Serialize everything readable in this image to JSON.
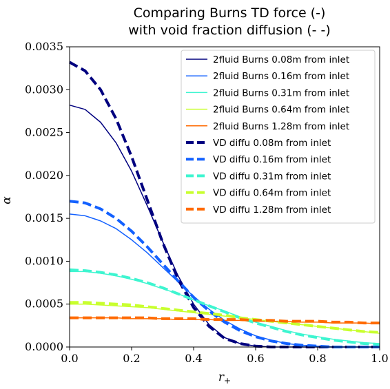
{
  "chart_data": {
    "type": "line",
    "title": [
      "Comparing Burns TD force (-)",
      "with void fraction diffusion (- -)"
    ],
    "xlabel": "r+",
    "ylabel": "α",
    "xlim": [
      0.0,
      1.0
    ],
    "ylim": [
      0.0,
      0.0035
    ],
    "x_ticks": [
      "0.0",
      "0.2",
      "0.4",
      "0.6",
      "0.8",
      "1.0"
    ],
    "y_ticks": [
      "0.0000",
      "0.0005",
      "0.0010",
      "0.0015",
      "0.0020",
      "0.0025",
      "0.0030",
      "0.0035"
    ],
    "grid": false,
    "legend_position": "top-right",
    "x": [
      0.0,
      0.05,
      0.1,
      0.15,
      0.2,
      0.25,
      0.3,
      0.35,
      0.4,
      0.45,
      0.5,
      0.55,
      0.6,
      0.65,
      0.7,
      0.75,
      0.8,
      0.85,
      0.9,
      0.95,
      1.0
    ],
    "series": [
      {
        "name": "2fluid Burns 0.08m from inlet",
        "color": "#00007f",
        "style": "solid",
        "values": [
          0.00282,
          0.00277,
          0.00262,
          0.00238,
          0.00205,
          0.00165,
          0.00123,
          0.00083,
          0.0005,
          0.00026,
          0.00011,
          4e-05,
          1e-05,
          0.0,
          0.0,
          0.0,
          0.0,
          0.0,
          0.0,
          0.0,
          0.0
        ]
      },
      {
        "name": "2fluid Burns 0.16m from inlet",
        "color": "#1361ff",
        "style": "solid",
        "values": [
          0.00155,
          0.00153,
          0.00147,
          0.00138,
          0.00125,
          0.0011,
          0.00093,
          0.00076,
          0.00059,
          0.00044,
          0.00031,
          0.00021,
          0.00013,
          8e-05,
          4e-05,
          2e-05,
          1e-05,
          0.0,
          0.0,
          0.0,
          0.0
        ]
      },
      {
        "name": "2fluid Burns 0.31m from inlet",
        "color": "#3ef5d0",
        "style": "solid",
        "values": [
          0.00088,
          0.00088,
          0.00086,
          0.00083,
          0.00079,
          0.00074,
          0.00068,
          0.00062,
          0.00055,
          0.00048,
          0.00042,
          0.00035,
          0.00029,
          0.00024,
          0.00019,
          0.00015,
          0.00012,
          9e-05,
          7e-05,
          5e-05,
          4e-05
        ]
      },
      {
        "name": "2fluid Burns 0.64m from inlet",
        "color": "#c8ff2e",
        "style": "solid",
        "values": [
          0.0005,
          0.0005,
          0.00049,
          0.00048,
          0.00047,
          0.00046,
          0.00044,
          0.00042,
          0.0004,
          0.00038,
          0.00036,
          0.00034,
          0.00032,
          0.0003,
          0.00028,
          0.00026,
          0.00024,
          0.00022,
          0.0002,
          0.00018,
          0.00016
        ]
      },
      {
        "name": "2fluid Burns 1.28m from inlet",
        "color": "#ff6a00",
        "style": "solid",
        "values": [
          0.00034,
          0.00034,
          0.00034,
          0.00034,
          0.00033,
          0.00033,
          0.00033,
          0.00032,
          0.00032,
          0.00032,
          0.00031,
          0.00031,
          0.0003,
          0.0003,
          0.0003,
          0.00029,
          0.00029,
          0.00028,
          0.00028,
          0.00028,
          0.00027
        ]
      },
      {
        "name": "VD diffu 0.08m from inlet",
        "color": "#00007f",
        "style": "dashed",
        "values": [
          0.00332,
          0.00322,
          0.003,
          0.00266,
          0.00222,
          0.00172,
          0.00122,
          0.00079,
          0.00046,
          0.00024,
          0.0001,
          4e-05,
          1e-05,
          0.0,
          0.0,
          0.0,
          0.0,
          0.0,
          0.0,
          0.0,
          0.0
        ]
      },
      {
        "name": "VD diffu 0.16m from inlet",
        "color": "#1361ff",
        "style": "dashed",
        "values": [
          0.0017,
          0.00168,
          0.00161,
          0.0015,
          0.00135,
          0.00117,
          0.00097,
          0.00077,
          0.00058,
          0.00042,
          0.00029,
          0.00019,
          0.00012,
          7e-05,
          4e-05,
          2e-05,
          1e-05,
          0.0,
          0.0,
          0.0,
          0.0
        ]
      },
      {
        "name": "VD diffu 0.31m from inlet",
        "color": "#3ef5d0",
        "style": "dashed",
        "values": [
          0.0009,
          0.00089,
          0.00087,
          0.00084,
          0.0008,
          0.00075,
          0.00069,
          0.00062,
          0.00055,
          0.00048,
          0.00041,
          0.00034,
          0.00028,
          0.00023,
          0.00018,
          0.00014,
          0.00011,
          8e-05,
          6e-05,
          4e-05,
          3e-05
        ]
      },
      {
        "name": "VD diffu 0.64m from inlet",
        "color": "#c8ff2e",
        "style": "dashed",
        "values": [
          0.00052,
          0.00052,
          0.00051,
          0.0005,
          0.00049,
          0.00047,
          0.00045,
          0.00043,
          0.00041,
          0.00039,
          0.00037,
          0.00034,
          0.00032,
          0.0003,
          0.00028,
          0.00026,
          0.00024,
          0.00022,
          0.0002,
          0.00018,
          0.00017
        ]
      },
      {
        "name": "VD diffu 1.28m from inlet",
        "color": "#ff6a00",
        "style": "dashed",
        "values": [
          0.00034,
          0.00034,
          0.00034,
          0.00034,
          0.00034,
          0.00034,
          0.00033,
          0.00033,
          0.00033,
          0.00032,
          0.00032,
          0.00032,
          0.00031,
          0.00031,
          0.0003,
          0.0003,
          0.0003,
          0.00029,
          0.00029,
          0.00028,
          0.00028
        ]
      }
    ]
  }
}
